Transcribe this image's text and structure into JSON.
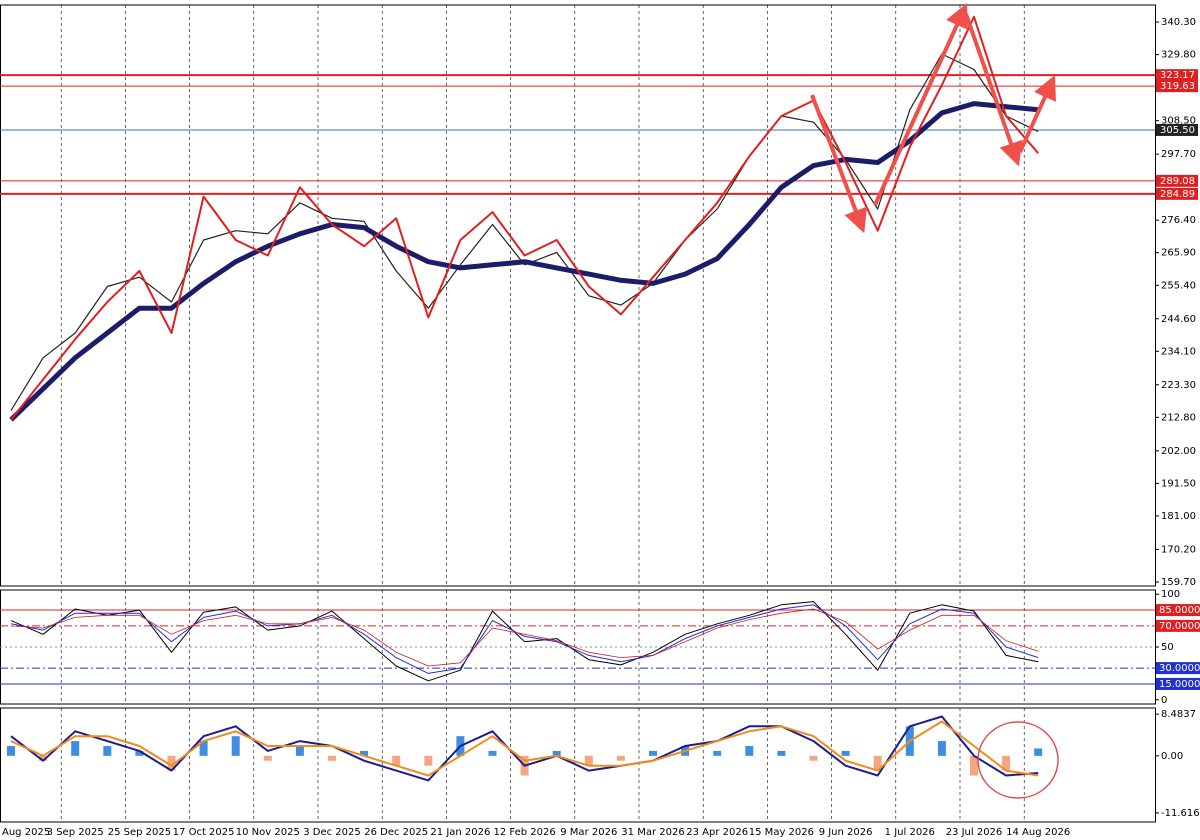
{
  "chart_data": [
    {
      "type": "line",
      "categories": [
        "Aug 2025",
        null,
        "3 Sep 2025",
        null,
        "25 Sep 2025",
        null,
        "17 Oct 2025",
        null,
        "10 Nov 2025",
        null,
        "3 Dec 2025",
        null,
        "26 Dec 2025",
        null,
        "21 Jan 2026",
        null,
        "12 Feb 2026",
        null,
        "9 Mar 2026",
        null,
        "31 Mar 2026",
        null,
        "23 Apr 2026",
        null,
        "15 May 2026",
        null,
        "9 Jun 2026",
        null,
        "1 Jul 2026",
        null,
        "23 Jul 2026",
        null,
        "14 Aug 2026"
      ],
      "series": [
        {
          "color": "#222222",
          "values": [
            215,
            232,
            240,
            255,
            258,
            250,
            270,
            273,
            272,
            282,
            277,
            276,
            260,
            248,
            262,
            275,
            262,
            266,
            252,
            249,
            256,
            270,
            280,
            297,
            310,
            308,
            296,
            280,
            312,
            330,
            325,
            310,
            305
          ]
        },
        {
          "color": "#1c1c6b",
          "values": [
            212,
            222,
            232,
            240,
            248,
            248,
            256,
            263,
            268,
            272,
            275,
            274,
            268,
            263,
            261,
            262,
            263,
            261,
            259,
            257,
            256,
            259,
            264,
            275,
            287,
            294,
            296,
            295,
            302,
            311,
            314,
            313,
            312
          ]
        },
        {
          "color": "#e02020",
          "values": [
            212,
            225,
            238,
            250,
            260,
            240,
            284,
            270,
            265,
            287,
            275,
            268,
            277,
            245,
            270,
            279,
            265,
            270,
            255,
            246,
            258,
            270,
            282,
            297,
            310,
            315,
            295,
            273,
            300,
            320,
            342,
            310,
            298
          ]
        }
      ],
      "levels": [
        323.17,
        319.63,
        289.08,
        284.89
      ],
      "level_color": "#e02020",
      "price": {
        "value": 305.5,
        "label": "305.50"
      },
      "price_color": "#3a6fb0",
      "ylim": [
        158.4,
        345.8
      ],
      "yticks": [
        {
          "value": 340.3,
          "label": "340.30"
        },
        {
          "value": 329.8,
          "label": "329.80"
        },
        {
          "value": 308.5,
          "label": "308.50"
        },
        {
          "value": 297.7,
          "label": "297.70"
        },
        {
          "value": 276.4,
          "label": "276.40"
        },
        {
          "value": 265.9,
          "label": "265.90"
        },
        {
          "value": 255.4,
          "label": "255.40"
        },
        {
          "value": 244.6,
          "label": "244.60"
        },
        {
          "value": 234.1,
          "label": "234.10"
        },
        {
          "value": 223.3,
          "label": "223.30"
        },
        {
          "value": 212.8,
          "label": "212.80"
        },
        {
          "value": 202.0,
          "label": "202.00"
        },
        {
          "value": 191.5,
          "label": "191.50"
        },
        {
          "value": 181.0,
          "label": "181.00"
        },
        {
          "value": 170.2,
          "label": "170.20"
        },
        {
          "value": 159.7,
          "label": "159.70"
        }
      ]
    },
    {
      "type": "line",
      "series": [
        {
          "color": "#000000",
          "values": [
            75,
            62,
            86,
            80,
            85,
            45,
            83,
            88,
            66,
            70,
            84,
            58,
            32,
            18,
            28,
            84,
            55,
            58,
            38,
            33,
            45,
            62,
            72,
            80,
            90,
            93,
            62,
            28,
            82,
            90,
            84,
            42,
            36
          ]
        },
        {
          "color": "#1f2fd0",
          "values": [
            72,
            66,
            82,
            82,
            82,
            55,
            78,
            84,
            70,
            72,
            80,
            62,
            40,
            25,
            30,
            75,
            60,
            55,
            42,
            36,
            42,
            58,
            70,
            78,
            86,
            90,
            70,
            38,
            72,
            86,
            82,
            50,
            40
          ]
        },
        {
          "color": "#d02020",
          "values": [
            70,
            68,
            78,
            80,
            80,
            62,
            75,
            80,
            72,
            72,
            78,
            66,
            45,
            32,
            35,
            68,
            62,
            56,
            45,
            40,
            42,
            55,
            68,
            76,
            82,
            86,
            74,
            48,
            66,
            80,
            80,
            56,
            46
          ]
        }
      ],
      "ylim": [
        -4,
        104
      ],
      "yticks": [
        100,
        {
          "value": 85,
          "label": "85.0000"
        },
        {
          "value": 70,
          "label": "70.0000"
        },
        50,
        {
          "value": 30,
          "label": "30.0000"
        },
        {
          "value": 15,
          "label": "15.0000"
        },
        0
      ]
    },
    {
      "type": "macd",
      "histogram": {
        "color": "#3d8ee0",
        "negative_color": "#f4a582",
        "values": [
          2,
          -1,
          3,
          2,
          1,
          -3,
          3,
          4,
          -1,
          2,
          -1,
          1,
          -2,
          -2,
          4,
          1,
          -4,
          1,
          -2,
          -1,
          1,
          2,
          1,
          2,
          1,
          -1,
          1,
          -3,
          6,
          3,
          -4,
          -3,
          1.5
        ]
      },
      "series": [
        {
          "color": "#1c1c8b",
          "values": [
            4,
            -1,
            5,
            3,
            1,
            -3,
            4,
            6,
            1,
            3,
            2,
            -1,
            -3,
            -5,
            2,
            5,
            -2,
            0,
            -3,
            -2,
            -1,
            2,
            3,
            6,
            6,
            3,
            -2,
            -4,
            6,
            8,
            0,
            -4,
            -3.5
          ]
        },
        {
          "color": "#f08c1c",
          "values": [
            3,
            0,
            4,
            4,
            2,
            -2,
            3,
            5,
            2,
            2,
            2,
            0,
            -2,
            -4,
            0,
            4,
            -1,
            0,
            -2,
            -2,
            -1,
            1,
            3,
            5,
            6,
            4,
            -1,
            -3,
            3,
            7,
            2,
            -3,
            -4
          ]
        }
      ],
      "ylim": [
        -13.46,
        9.73
      ],
      "yticks": [
        8.4837,
        {
          "value": 0,
          "label": "0.00"
        },
        -11.6164
      ]
    }
  ]
}
